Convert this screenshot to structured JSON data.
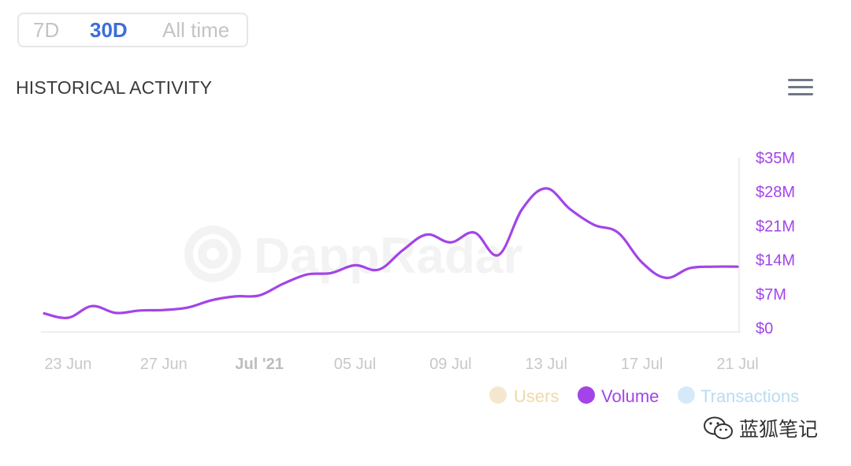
{
  "range_selector": {
    "options": [
      "7D",
      "30D",
      "All time"
    ],
    "active": "30D"
  },
  "panel": {
    "title": "HISTORICAL ACTIVITY",
    "menu_icon": "hamburger-menu-icon"
  },
  "watermark": {
    "text": "DappRadar"
  },
  "footer_watermark": {
    "text": "蓝狐笔记"
  },
  "colors": {
    "volume": "#a344e8",
    "users": "#f5e7cf",
    "transactions": "#d6e9f8",
    "active_tab": "#3a6fd8"
  },
  "chart_data": {
    "type": "line",
    "y_axis_position": "right",
    "ylim": [
      0,
      35
    ],
    "y_ticks": [
      0,
      7,
      14,
      21,
      28,
      35
    ],
    "y_tick_labels": [
      "$0",
      "$7M",
      "$14M",
      "$21M",
      "$28M",
      "$35M"
    ],
    "x_range": [
      "2021-06-22",
      "2021-07-21"
    ],
    "x_tick_labels": [
      "23 Jun",
      "27 Jun",
      "Jul '21",
      "05 Jul",
      "09 Jul",
      "13 Jul",
      "17 Jul",
      "21 Jul"
    ],
    "x_tick_dates": [
      "2021-06-23",
      "2021-06-27",
      "2021-07-01",
      "2021-07-05",
      "2021-07-09",
      "2021-07-13",
      "2021-07-17",
      "2021-07-21"
    ],
    "bold_tick": "Jul '21",
    "legend": [
      {
        "name": "Users",
        "color": "#f5e7cf",
        "text_color": "#f0d9a8",
        "active": false
      },
      {
        "name": "Volume",
        "color": "#a344e8",
        "text_color": "#a344e8",
        "active": true
      },
      {
        "name": "Transactions",
        "color": "#d6e9f8",
        "text_color": "#b9dcf2",
        "active": false
      }
    ],
    "series": [
      {
        "name": "Volume",
        "x": [
          "2021-06-22",
          "2021-06-23",
          "2021-06-24",
          "2021-06-25",
          "2021-06-26",
          "2021-06-27",
          "2021-06-28",
          "2021-06-29",
          "2021-06-30",
          "2021-07-01",
          "2021-07-02",
          "2021-07-03",
          "2021-07-04",
          "2021-07-05",
          "2021-07-06",
          "2021-07-07",
          "2021-07-08",
          "2021-07-09",
          "2021-07-10",
          "2021-07-11",
          "2021-07-12",
          "2021-07-13",
          "2021-07-14",
          "2021-07-15",
          "2021-07-16",
          "2021-07-17",
          "2021-07-18",
          "2021-07-19",
          "2021-07-20",
          "2021-07-21"
        ],
        "values": [
          3.0,
          2.1,
          4.5,
          3.1,
          3.6,
          3.7,
          4.2,
          5.7,
          6.5,
          6.7,
          9.1,
          11.0,
          11.3,
          12.9,
          12.0,
          16.0,
          19.2,
          17.6,
          19.6,
          15.0,
          24.5,
          28.7,
          24.4,
          21.2,
          19.6,
          13.5,
          10.3,
          12.3,
          12.6,
          12.6
        ]
      }
    ]
  }
}
